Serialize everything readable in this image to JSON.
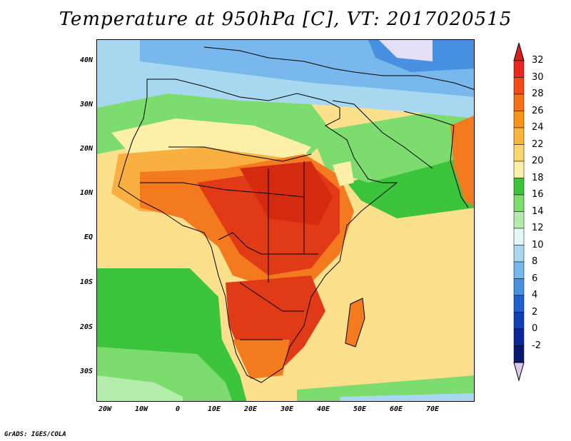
{
  "title": "Temperature at 950hPa [C], VT: 2017020515",
  "credit": "GrADS: IGES/COLA",
  "axes": {
    "lat_labels": [
      "40N",
      "30N",
      "20N",
      "10N",
      "EQ",
      "10S",
      "20S",
      "30S"
    ],
    "lon_labels": [
      "20W",
      "10W",
      "0",
      "10E",
      "20E",
      "30E",
      "40E",
      "50E",
      "60E",
      "70E"
    ],
    "lon_range": [
      -22,
      80
    ],
    "lat_range": [
      -37,
      45
    ]
  },
  "colorbar": {
    "levels": [
      "32",
      "30",
      "28",
      "26",
      "24",
      "22",
      "20",
      "18",
      "16",
      "14",
      "12",
      "10",
      "8",
      "6",
      "4",
      "2",
      "0",
      "-2"
    ],
    "colors": [
      "#e8281c",
      "#f44a16",
      "#f86f14",
      "#fa9415",
      "#fbb43c",
      "#fdd56f",
      "#fef0a8",
      "#3cc43c",
      "#7cdc6e",
      "#b4ecac",
      "#e4f8f8",
      "#a8d8f0",
      "#78b8ec",
      "#4890e0",
      "#2060d0",
      "#1040b8",
      "#0a2898",
      "#081870"
    ],
    "top_arrow_color": "#d8201c",
    "bottom_arrow_color": "#d8c8f0"
  },
  "field_colors": {
    "ocean_warm": "#fde08c",
    "ocean_mild": "#fef0a8",
    "ocean_cool": "#3cc43c",
    "ocean_cooler": "#7cdc6e",
    "sea_cold": "#78b8ec",
    "sea_cooler": "#a8d8f0",
    "land_hot": "#e03a16",
    "land_hotter": "#d42a10",
    "land_warm": "#f47a20",
    "land_mild": "#fab040",
    "highland": "#4890e0",
    "coast": "#000000"
  }
}
